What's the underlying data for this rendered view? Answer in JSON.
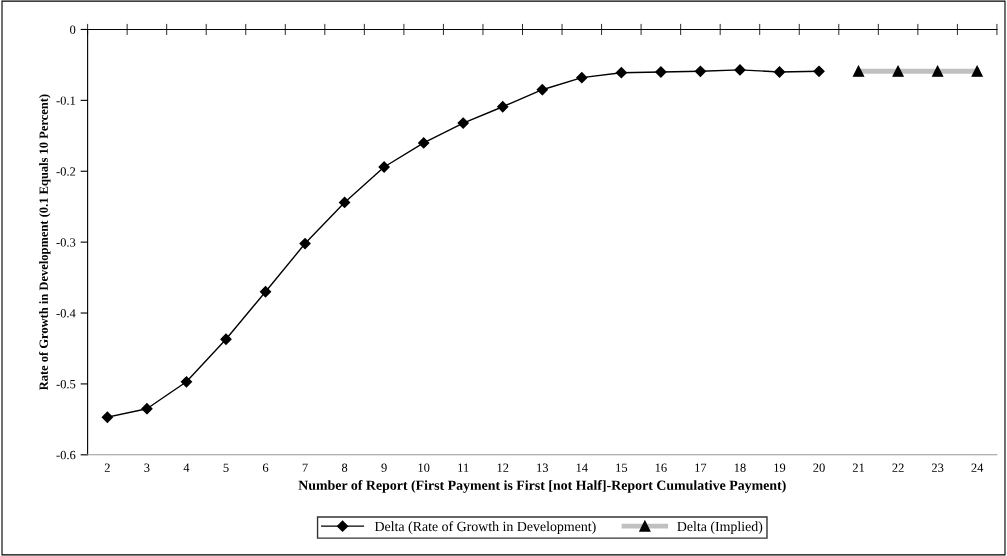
{
  "chart_data": {
    "type": "line",
    "xlabel": "Number of Report (First Payment is First [not Half]-Report Cumulative Payment)",
    "ylabel": "Rate of Growth in Development (0.1 Equals 10 Percent)",
    "categories": [
      "2",
      "3",
      "4",
      "5",
      "6",
      "7",
      "8",
      "9",
      "10",
      "11",
      "12",
      "13",
      "14",
      "15",
      "16",
      "17",
      "18",
      "19",
      "20",
      "21",
      "22",
      "23",
      "24"
    ],
    "series": [
      {
        "name": "Delta (Rate of Growth in Development)",
        "color": "#000000",
        "marker": "diamond",
        "line_style": "solid",
        "values": [
          -0.547,
          -0.535,
          -0.497,
          -0.437,
          -0.37,
          -0.302,
          -0.244,
          -0.194,
          -0.16,
          -0.132,
          -0.109,
          -0.085,
          -0.068,
          -0.061,
          -0.06,
          -0.059,
          -0.057,
          -0.06,
          -0.059,
          null,
          null,
          null,
          null
        ]
      },
      {
        "name": "Delta (Implied)",
        "color": "#c0c0c0",
        "marker": "triangle",
        "line_style": "solid",
        "values": [
          null,
          null,
          null,
          null,
          null,
          null,
          null,
          null,
          null,
          null,
          null,
          null,
          null,
          null,
          null,
          null,
          null,
          null,
          null,
          -0.059,
          -0.059,
          -0.059,
          -0.059
        ]
      }
    ],
    "ylim": [
      -0.6,
      0
    ],
    "yticks": [
      0,
      -0.1,
      -0.2,
      -0.3,
      -0.4,
      -0.5,
      -0.6
    ],
    "grid": false,
    "legend": "bottom"
  }
}
